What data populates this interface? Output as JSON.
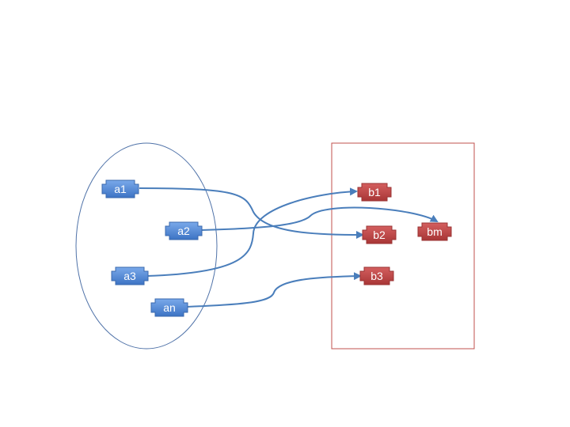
{
  "colors": {
    "background": "#ffffff",
    "set_a_outline": "#4f72a8",
    "set_b_outline": "#c0504d",
    "node_a_fill": "#4f86d6",
    "node_b_fill": "#c04545",
    "arrow": "#4a7ebb"
  },
  "set_a": {
    "nodes": [
      {
        "id": "a1",
        "label": "a1"
      },
      {
        "id": "a2",
        "label": "a2"
      },
      {
        "id": "a3",
        "label": "a3"
      },
      {
        "id": "an",
        "label": "an"
      }
    ]
  },
  "set_b": {
    "nodes": [
      {
        "id": "b1",
        "label": "b1"
      },
      {
        "id": "b2",
        "label": "b2"
      },
      {
        "id": "b3",
        "label": "b3"
      },
      {
        "id": "bm",
        "label": "bm"
      }
    ]
  },
  "mappings": [
    {
      "from": "a1",
      "to": "b2"
    },
    {
      "from": "a2",
      "to": "bm"
    },
    {
      "from": "a3",
      "to": "b1"
    },
    {
      "from": "an",
      "to": "b3"
    }
  ]
}
